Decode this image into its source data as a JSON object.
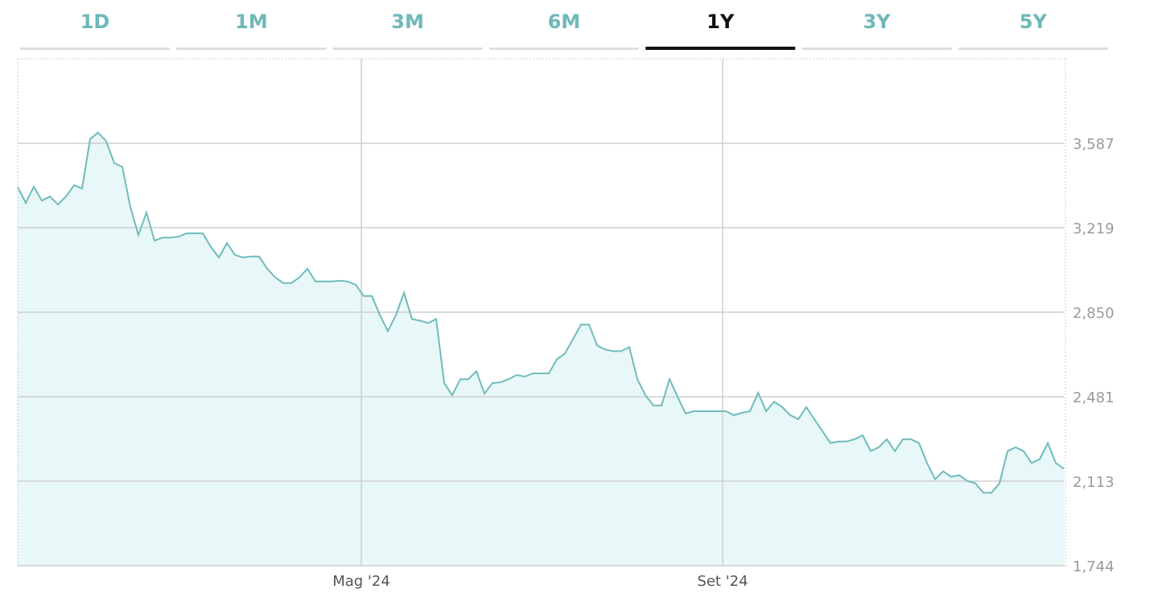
{
  "tabs": [
    "1D",
    "1M",
    "3M",
    "6M",
    "1Y",
    "3Y",
    "5Y"
  ],
  "selected_tab": 4,
  "chart_data": {
    "type": "area",
    "values": [
      3397,
      3327,
      3397,
      3337,
      3355,
      3320,
      3355,
      3404,
      3390,
      3606,
      3634,
      3596,
      3501,
      3484,
      3309,
      3187,
      3285,
      3162,
      3176,
      3176,
      3180,
      3194,
      3194,
      3194,
      3135,
      3089,
      3152,
      3100,
      3089,
      3093,
      3093,
      3040,
      3002,
      2977,
      2977,
      3002,
      3040,
      2984,
      2984,
      2984,
      2988,
      2984,
      2970,
      2921,
      2921,
      2838,
      2768,
      2838,
      2935,
      2820,
      2813,
      2803,
      2820,
      2541,
      2488,
      2558,
      2558,
      2593,
      2495,
      2541,
      2544,
      2558,
      2576,
      2569,
      2583,
      2583,
      2583,
      2645,
      2670,
      2733,
      2796,
      2796,
      2705,
      2687,
      2680,
      2680,
      2698,
      2558,
      2488,
      2443,
      2443,
      2558,
      2481,
      2408,
      2418,
      2418,
      2418,
      2418,
      2418,
      2401,
      2411,
      2418,
      2499,
      2418,
      2460,
      2436,
      2401,
      2383,
      2436,
      2383,
      2331,
      2279,
      2286,
      2286,
      2296,
      2313,
      2244,
      2261,
      2296,
      2244,
      2296,
      2296,
      2279,
      2192,
      2121,
      2156,
      2132,
      2139,
      2114,
      2104,
      2062,
      2062,
      2104,
      2244,
      2261,
      2244,
      2192,
      2209,
      2279,
      2192,
      2167
    ],
    "color": "#6fbcbc",
    "fill": "#e8f7f7",
    "xlim": [
      0,
      130
    ],
    "xticks": [
      {
        "value": 42.7,
        "label": "Mag '24"
      },
      {
        "value": 87.6,
        "label": "Set '24"
      }
    ],
    "ylim": [
      1744,
      3956
    ],
    "yticks": [
      {
        "value": 1744,
        "label": "1,744"
      },
      {
        "value": 2113,
        "label": "2,113"
      },
      {
        "value": 2481,
        "label": "2,481"
      },
      {
        "value": 2850,
        "label": "2,850"
      },
      {
        "value": 3219,
        "label": "3,219"
      },
      {
        "value": 3587,
        "label": "3,587"
      }
    ],
    "grid": true
  }
}
